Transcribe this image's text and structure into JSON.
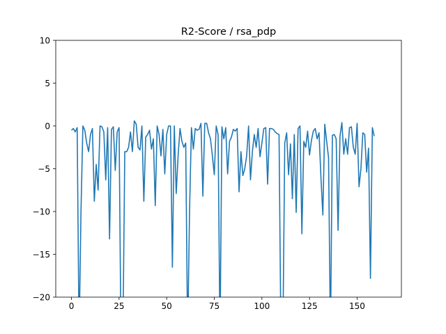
{
  "chart_data": {
    "type": "line",
    "title": "R2-Score / rsa_pdp",
    "xlabel": "",
    "ylabel": "",
    "xlim": [
      -8.25,
      173.25
    ],
    "ylim": [
      -20,
      10
    ],
    "xticks": [
      0,
      25,
      50,
      75,
      100,
      125,
      150
    ],
    "yticks": [
      -20,
      -15,
      -10,
      -5,
      0,
      5,
      10
    ],
    "grid": false,
    "series": [
      {
        "color": "#1f77b4",
        "y": [
          -0.5,
          -0.3,
          -0.7,
          -0.2,
          -25,
          -10,
          0,
          -0.5,
          -2,
          -3,
          -1,
          -0.3,
          -8.8,
          -4.5,
          -7.5,
          0,
          -0.1,
          -0.7,
          -6.3,
          -0.2,
          -13.2,
          -0.4,
          -0.1,
          -5.2,
          -0.7,
          -0.2,
          -25,
          -25,
          -3,
          -3,
          -2.5,
          -0.7,
          -3,
          0.6,
          0.2,
          -2.5,
          -2.8,
          0,
          -8.8,
          -1.3,
          -1.0,
          -0.5,
          -2.7,
          -1.5,
          -9.3,
          0,
          -1.0,
          -3.5,
          -0.4,
          -5.6,
          -1.0,
          0,
          0,
          -16.5,
          0,
          -7.9,
          -3.5,
          -0.3,
          -1.8,
          -2.5,
          -2,
          -25,
          -10,
          -0.2,
          -2.7,
          -0.3,
          -0.5,
          -0.4,
          0.3,
          -8.2,
          0.3,
          0.3,
          -0.8,
          -1.5,
          -3.5,
          -5.7,
          0,
          -1.0,
          -25,
          -0.1,
          -1.5,
          -0.2,
          -5.6,
          -1.8,
          -1.3,
          -0.4,
          -0.6,
          -0.3,
          -7.7,
          -3.0,
          -5.8,
          -5.0,
          -3.5,
          0,
          -6.3,
          -3.0,
          -1.0,
          -2.5,
          -0.3,
          -3.6,
          -2.0,
          -0.3,
          -0.2,
          -6.8,
          -0.3,
          -0.3,
          -0.4,
          -0.7,
          -0.9,
          -1.0,
          -25,
          -25,
          -2.0,
          -0.8,
          -5.7,
          -2.1,
          -8.5,
          -1.0,
          -10.1,
          -0.3,
          0,
          -12.6,
          -1.8,
          -2.5,
          -0.6,
          -3.4,
          -1.7,
          -0.6,
          -0.3,
          -1.5,
          -0.8,
          -6.0,
          -10.4,
          0.2,
          -1.8,
          -3.7,
          -25,
          -1.1,
          -1.0,
          -1.5,
          -12.2,
          -1.2,
          0.4,
          -3.3,
          -1.5,
          -3.3,
          -0.2,
          -0.1,
          -2.5,
          -3.3,
          0.3,
          -7.1,
          -5.0,
          -0.8,
          -1.0,
          -5.4,
          -2.6,
          -17.8,
          -0.2,
          -1.2
        ]
      }
    ]
  }
}
